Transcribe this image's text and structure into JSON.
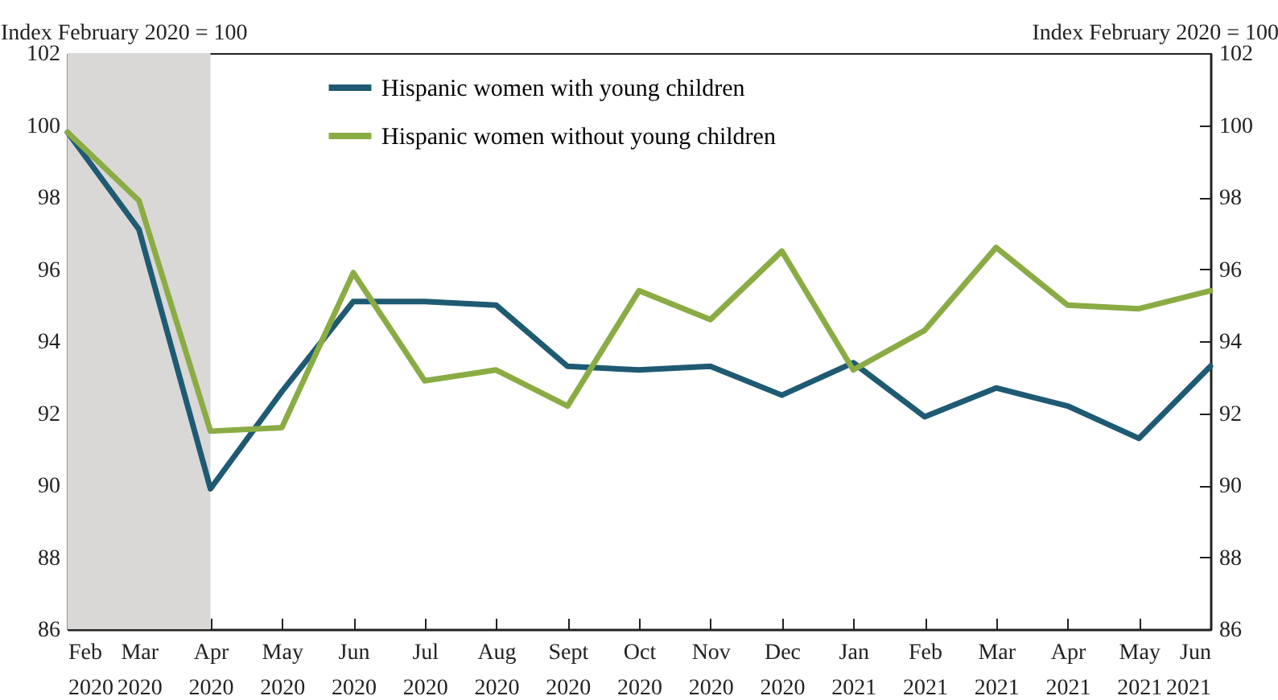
{
  "chart_data": {
    "type": "line",
    "ylabel": "Index February 2020 = 100",
    "y2label": "Index February 2020 = 100",
    "categories": [
      "Feb 2020",
      "Mar 2020",
      "Apr 2020",
      "May 2020",
      "Jun 2020",
      "Jul 2020",
      "Aug 2020",
      "Sept 2020",
      "Oct 2020",
      "Nov 2020",
      "Dec 2020",
      "Jan 2021",
      "Feb 2021",
      "Mar 2021",
      "Apr 2021",
      "May 2021",
      "Jun 2021"
    ],
    "series": [
      {
        "name": "Hispanic women with young children",
        "color": "#1f5a73",
        "values": [
          99.8,
          97.1,
          89.9,
          92.6,
          95.1,
          95.1,
          95.0,
          93.3,
          93.2,
          93.3,
          92.5,
          93.4,
          91.9,
          92.7,
          92.2,
          91.3,
          93.3
        ]
      },
      {
        "name": "Hispanic women without young children",
        "color": "#8aac44",
        "values": [
          99.8,
          97.9,
          91.5,
          91.6,
          95.9,
          92.9,
          93.2,
          92.2,
          95.4,
          94.6,
          96.5,
          93.2,
          94.3,
          96.6,
          95.0,
          94.9,
          95.4
        ]
      }
    ],
    "ylim": [
      86,
      102
    ],
    "yticks": [
      86,
      88,
      90,
      92,
      94,
      96,
      98,
      100,
      102
    ],
    "y2lim": [
      86,
      102
    ],
    "y2ticks": [
      86,
      88,
      90,
      92,
      94,
      96,
      98,
      100,
      102
    ],
    "bands": [
      {
        "axis": "x",
        "from": "Feb 2020",
        "to": "Apr 2020",
        "color": "#d9d8d7"
      }
    ],
    "legend": "top left",
    "grid": false,
    "line_style": "solid",
    "marker": "none"
  }
}
